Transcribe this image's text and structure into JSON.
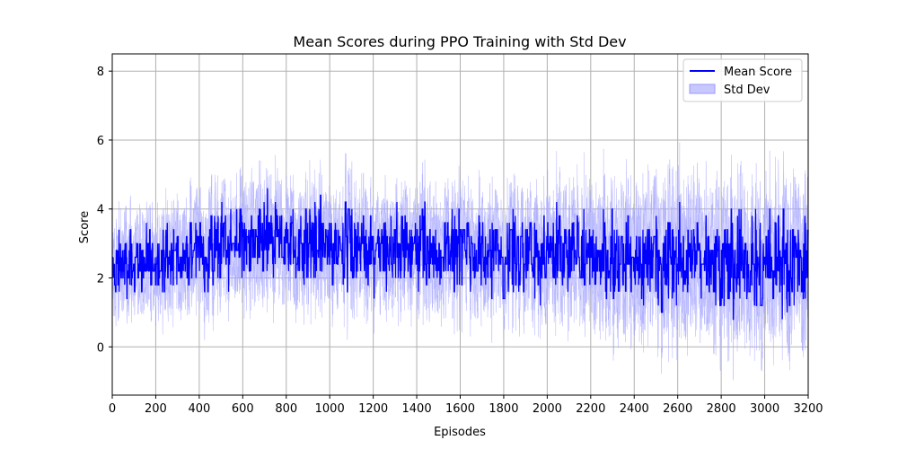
{
  "chart_data": {
    "type": "line",
    "title": "Mean Scores during PPO Training with Std Dev",
    "xlabel": "Episodes",
    "ylabel": "Score",
    "xlim": [
      0,
      3200
    ],
    "ylim": [
      -1.4,
      8.5
    ],
    "x_ticks": [
      0,
      200,
      400,
      600,
      800,
      1000,
      1200,
      1400,
      1600,
      1800,
      2000,
      2200,
      2400,
      2600,
      2800,
      3000,
      3200
    ],
    "y_ticks": [
      0,
      2,
      4,
      6,
      8
    ],
    "grid": true,
    "legend_position": "top-right",
    "colors": {
      "mean": "#0000ff",
      "band": "#c8c8ff",
      "band_edge": "#9999ff",
      "grid": "#b0b0b0"
    },
    "series": [
      {
        "name": "Mean Score",
        "kind": "line",
        "x": [
          0,
          100,
          200,
          300,
          400,
          500,
          600,
          700,
          800,
          900,
          1000,
          1100,
          1200,
          1300,
          1400,
          1500,
          1600,
          1700,
          1800,
          1900,
          2000,
          2100,
          2200,
          2300,
          2400,
          2500,
          2600,
          2700,
          2800,
          2900,
          3000,
          3100,
          3200
        ],
        "y": [
          2.3,
          2.5,
          2.5,
          2.6,
          2.8,
          2.9,
          3.0,
          3.1,
          3.0,
          3.0,
          2.9,
          2.9,
          2.8,
          2.8,
          2.8,
          2.8,
          2.7,
          2.7,
          2.7,
          2.7,
          2.7,
          2.6,
          2.6,
          2.6,
          2.5,
          2.5,
          2.6,
          2.6,
          2.5,
          2.4,
          2.5,
          2.5,
          2.6
        ],
        "max_abs_deviation": [
          1.2,
          1.5,
          1.4,
          1.4,
          1.6,
          1.6,
          1.7,
          1.7,
          1.6,
          1.6,
          1.6,
          1.6,
          1.6,
          1.6,
          1.7,
          1.6,
          1.6,
          1.6,
          1.6,
          1.6,
          1.6,
          1.7,
          1.7,
          1.8,
          1.9,
          2.0,
          2.0,
          2.0,
          2.0,
          2.0,
          2.0,
          2.0,
          2.0
        ]
      },
      {
        "name": "Std Dev",
        "kind": "band",
        "x": [
          0,
          100,
          200,
          300,
          400,
          500,
          600,
          700,
          800,
          900,
          1000,
          1100,
          1200,
          1300,
          1400,
          1500,
          1600,
          1700,
          1800,
          1900,
          2000,
          2100,
          2200,
          2300,
          2400,
          2500,
          2600,
          2700,
          2800,
          2900,
          3000,
          3100,
          3200
        ],
        "std": [
          0.9,
          0.9,
          1.0,
          1.0,
          1.1,
          1.1,
          1.1,
          1.1,
          1.1,
          1.1,
          1.1,
          1.1,
          1.1,
          1.1,
          1.1,
          1.1,
          1.1,
          1.1,
          1.1,
          1.2,
          1.2,
          1.2,
          1.3,
          1.4,
          1.5,
          1.5,
          1.5,
          1.5,
          1.5,
          1.5,
          1.5,
          1.5,
          1.5
        ]
      }
    ]
  }
}
